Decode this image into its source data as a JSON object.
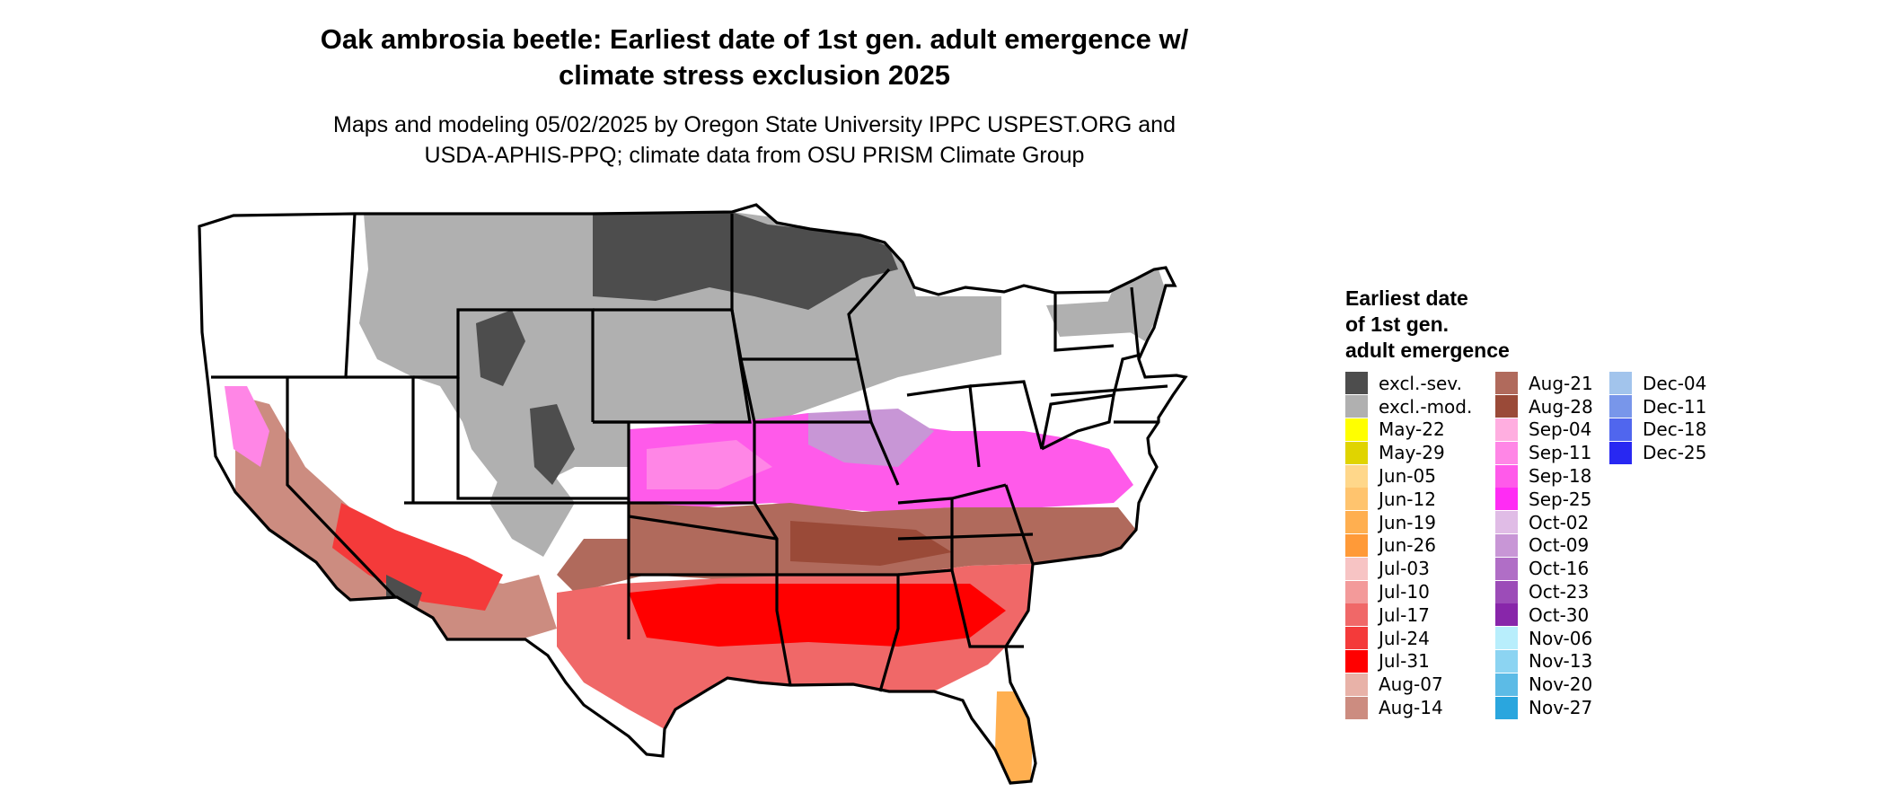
{
  "title_lines": [
    "Oak ambrosia beetle: Earliest date of 1st gen. adult emergence w/",
    "climate stress exclusion 2025"
  ],
  "subtitle_lines": [
    "Maps and modeling 05/02/2025 by Oregon State University IPPC USPEST.ORG and",
    "USDA-APHIS-PPQ; climate data from OSU PRISM Climate Group"
  ],
  "legend": {
    "title_lines": [
      "Earliest date",
      "of 1st gen.",
      "adult emergence"
    ],
    "columns": [
      [
        {
          "label": "excl.-sev.",
          "color": "#4d4d4d"
        },
        {
          "label": "excl.-mod.",
          "color": "#b0b0b0"
        },
        {
          "label": "May-22",
          "color": "#ffff00"
        },
        {
          "label": "May-29",
          "color": "#e0d400"
        },
        {
          "label": "Jun-05",
          "color": "#ffd78a"
        },
        {
          "label": "Jun-12",
          "color": "#ffc46e"
        },
        {
          "label": "Jun-19",
          "color": "#ffaf50"
        },
        {
          "label": "Jun-26",
          "color": "#ff9a38"
        },
        {
          "label": "Jul-03",
          "color": "#f7c4c4"
        },
        {
          "label": "Jul-10",
          "color": "#f39a9a"
        },
        {
          "label": "Jul-17",
          "color": "#f06868"
        },
        {
          "label": "Jul-24",
          "color": "#f43a3a"
        },
        {
          "label": "Jul-31",
          "color": "#ff0000"
        },
        {
          "label": "Aug-07",
          "color": "#e8b2a8"
        },
        {
          "label": "Aug-14",
          "color": "#cc8c80"
        }
      ],
      [
        {
          "label": "Aug-21",
          "color": "#b06a5c"
        },
        {
          "label": "Aug-28",
          "color": "#9a4a38"
        },
        {
          "label": "Sep-04",
          "color": "#ffaee0"
        },
        {
          "label": "Sep-11",
          "color": "#ff86e6"
        },
        {
          "label": "Sep-18",
          "color": "#ff5aea"
        },
        {
          "label": "Sep-25",
          "color": "#ff2cf4"
        },
        {
          "label": "Oct-02",
          "color": "#e0bce6"
        },
        {
          "label": "Oct-09",
          "color": "#c896d6"
        },
        {
          "label": "Oct-16",
          "color": "#b06ec6"
        },
        {
          "label": "Oct-23",
          "color": "#9c4cb8"
        },
        {
          "label": "Oct-30",
          "color": "#8826aa"
        },
        {
          "label": "Nov-06",
          "color": "#b8eefc"
        },
        {
          "label": "Nov-13",
          "color": "#8cd4f2"
        },
        {
          "label": "Nov-20",
          "color": "#5cbbe6"
        },
        {
          "label": "Nov-27",
          "color": "#2aa6de"
        }
      ],
      [
        {
          "label": "Dec-04",
          "color": "#a2c4ec"
        },
        {
          "label": "Dec-11",
          "color": "#7896ea"
        },
        {
          "label": "Dec-18",
          "color": "#5066ee"
        },
        {
          "label": "Dec-25",
          "color": "#2828f2"
        }
      ]
    ]
  }
}
